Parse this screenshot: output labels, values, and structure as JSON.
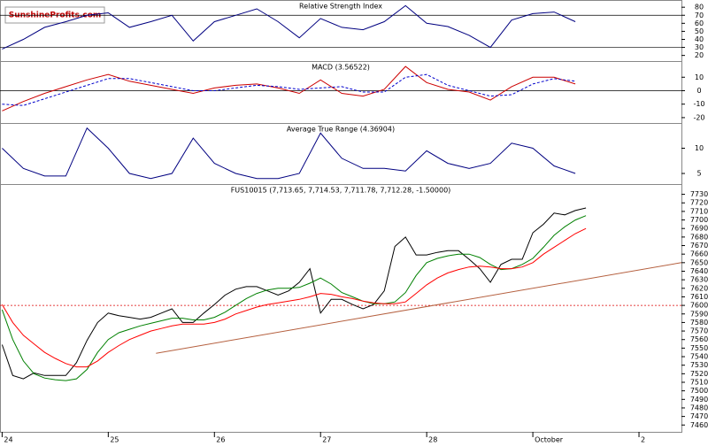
{
  "logo": "SunshineProfits.com",
  "chart_data": [
    {
      "type": "line",
      "title": "Relative Strength Index",
      "x": [
        24,
        24.2,
        24.4,
        24.6,
        24.8,
        25,
        25.2,
        25.4,
        25.6,
        25.8,
        26,
        26.2,
        26.4,
        26.6,
        26.8,
        27,
        27.2,
        27.4,
        27.6,
        27.8,
        28,
        28.2,
        28.4,
        28.6,
        28.8,
        29,
        29.2,
        29.4
      ],
      "series": [
        {
          "color": "#000080",
          "values": [
            28,
            40,
            55,
            62,
            70,
            73,
            55,
            62,
            70,
            38,
            62,
            70,
            78,
            62,
            42,
            66,
            55,
            52,
            62,
            82,
            60,
            56,
            45,
            30,
            64,
            72,
            74,
            62
          ]
        }
      ],
      "xlim": [
        23.98,
        30.4
      ],
      "ylim": [
        13,
        89
      ],
      "yticks": [
        20,
        30,
        40,
        50,
        60,
        70,
        80
      ],
      "hlines": [
        70,
        30
      ],
      "hline_color": "#000000"
    },
    {
      "type": "line",
      "title": "MACD (3.56522)",
      "x": [
        24,
        24.2,
        24.4,
        24.6,
        24.8,
        25,
        25.2,
        25.4,
        25.6,
        25.8,
        26,
        26.2,
        26.4,
        26.6,
        26.8,
        27,
        27.2,
        27.4,
        27.6,
        27.8,
        28,
        28.2,
        28.4,
        28.6,
        28.8,
        29,
        29.2,
        29.4
      ],
      "series": [
        {
          "color": "#cc0000",
          "values": [
            -15,
            -8,
            -2,
            3,
            8,
            12,
            7,
            4,
            1,
            -2,
            2,
            4,
            5,
            2,
            -2,
            8,
            -2,
            -4,
            1,
            18,
            6,
            1,
            -1,
            -7,
            3,
            10,
            10,
            5
          ]
        },
        {
          "color": "#0000cc",
          "dash": true,
          "values": [
            -10,
            -11,
            -6,
            -1,
            4,
            9,
            9,
            6,
            3,
            0,
            0,
            2,
            4,
            3,
            1,
            2,
            3,
            -1,
            -1,
            10,
            12,
            4,
            0,
            -4,
            -3,
            5,
            9,
            7
          ]
        }
      ],
      "xlim": [
        23.98,
        30.4
      ],
      "ylim": [
        -24,
        22
      ],
      "yticks": [
        -20,
        -10,
        0,
        10
      ],
      "hlines": [
        0
      ],
      "hline_color": "#000000"
    },
    {
      "type": "line",
      "title": "Average True Range (4.36904)",
      "x": [
        24,
        24.2,
        24.4,
        24.6,
        24.8,
        25,
        25.2,
        25.4,
        25.6,
        25.8,
        26,
        26.2,
        26.4,
        26.6,
        26.8,
        27,
        27.2,
        27.4,
        27.6,
        27.8,
        28,
        28.2,
        28.4,
        28.6,
        28.8,
        29,
        29.2,
        29.4
      ],
      "series": [
        {
          "color": "#000080",
          "values": [
            10,
            6,
            4.5,
            4.5,
            14,
            10,
            5,
            4,
            5,
            12,
            7,
            5,
            4,
            4,
            5,
            13,
            8,
            6,
            6,
            5.5,
            9.5,
            7,
            6,
            7,
            11,
            10,
            6.5,
            5
          ]
        }
      ],
      "xlim": [
        23.98,
        30.4
      ],
      "ylim": [
        2.9,
        15
      ],
      "yticks": [
        5,
        10
      ]
    },
    {
      "type": "line",
      "title": "FUS10015 (7,713.65, 7,714.53, 7,711.78, 7,712.28, -1.50000)",
      "x": [
        24,
        24.1,
        24.2,
        24.3,
        24.4,
        24.5,
        24.6,
        24.7,
        24.8,
        24.9,
        25,
        25.1,
        25.2,
        25.3,
        25.4,
        25.5,
        25.6,
        25.7,
        25.8,
        25.9,
        26,
        26.1,
        26.2,
        26.3,
        26.4,
        26.5,
        26.6,
        26.7,
        26.8,
        26.9,
        27,
        27.1,
        27.2,
        27.3,
        27.4,
        27.5,
        27.6,
        27.7,
        27.8,
        27.9,
        28,
        28.1,
        28.2,
        28.3,
        28.4,
        28.5,
        28.6,
        28.7,
        28.8,
        28.9,
        29,
        29.1,
        29.2,
        29.3,
        29.4,
        29.5
      ],
      "series": [
        {
          "color": "#000000",
          "values": [
            7554,
            7518,
            7514,
            7521,
            7518,
            7518,
            7518,
            7533,
            7559,
            7580,
            7591,
            7588,
            7586,
            7584,
            7586,
            7591,
            7596,
            7580,
            7580,
            7591,
            7601,
            7612,
            7619,
            7622,
            7622,
            7617,
            7612,
            7617,
            7627,
            7643,
            7591,
            7607,
            7607,
            7601,
            7596,
            7601,
            7617,
            7669,
            7680,
            7659,
            7659,
            7662,
            7664,
            7664,
            7654,
            7643,
            7627,
            7648,
            7654,
            7654,
            7685,
            7695,
            7708,
            7706,
            7711,
            7714
          ]
        },
        {
          "color": "#008000",
          "values": [
            7595,
            7560,
            7535,
            7520,
            7515,
            7513,
            7512,
            7514,
            7525,
            7545,
            7560,
            7568,
            7572,
            7576,
            7579,
            7582,
            7585,
            7585,
            7583,
            7583,
            7586,
            7592,
            7600,
            7608,
            7614,
            7618,
            7620,
            7620,
            7621,
            7626,
            7632,
            7625,
            7615,
            7610,
            7605,
            7602,
            7602,
            7604,
            7615,
            7635,
            7650,
            7655,
            7658,
            7660,
            7660,
            7656,
            7648,
            7642,
            7643,
            7648,
            7655,
            7668,
            7682,
            7692,
            7700,
            7705
          ]
        },
        {
          "color": "#ff0000",
          "values": [
            7601,
            7580,
            7565,
            7555,
            7545,
            7538,
            7532,
            7528,
            7528,
            7535,
            7545,
            7553,
            7560,
            7565,
            7570,
            7573,
            7576,
            7578,
            7578,
            7578,
            7580,
            7584,
            7590,
            7594,
            7598,
            7601,
            7603,
            7605,
            7607,
            7610,
            7614,
            7613,
            7610,
            7608,
            7605,
            7603,
            7602,
            7602,
            7604,
            7614,
            7624,
            7632,
            7638,
            7642,
            7645,
            7646,
            7645,
            7643,
            7643,
            7645,
            7650,
            7660,
            7668,
            7676,
            7684,
            7690
          ]
        }
      ],
      "trendline": {
        "color": "#b5603f",
        "x": [
          25.45,
          30.4
        ],
        "values": [
          7544,
          7650
        ]
      },
      "xlim": [
        23.98,
        30.4
      ],
      "ylim": [
        7452,
        7742
      ],
      "yticks": [
        7460,
        7470,
        7480,
        7490,
        7500,
        7510,
        7520,
        7530,
        7540,
        7550,
        7560,
        7570,
        7580,
        7590,
        7600,
        7610,
        7620,
        7630,
        7640,
        7650,
        7660,
        7670,
        7680,
        7690,
        7700,
        7710,
        7720,
        7730
      ],
      "xticks": [
        24,
        25,
        26,
        27,
        28,
        {
          "value": 29,
          "label": "October"
        },
        {
          "value": 30,
          "label": "2"
        }
      ],
      "hlines": [
        7600
      ],
      "hline_color": "#dd0000",
      "hline_dotted": true
    }
  ]
}
